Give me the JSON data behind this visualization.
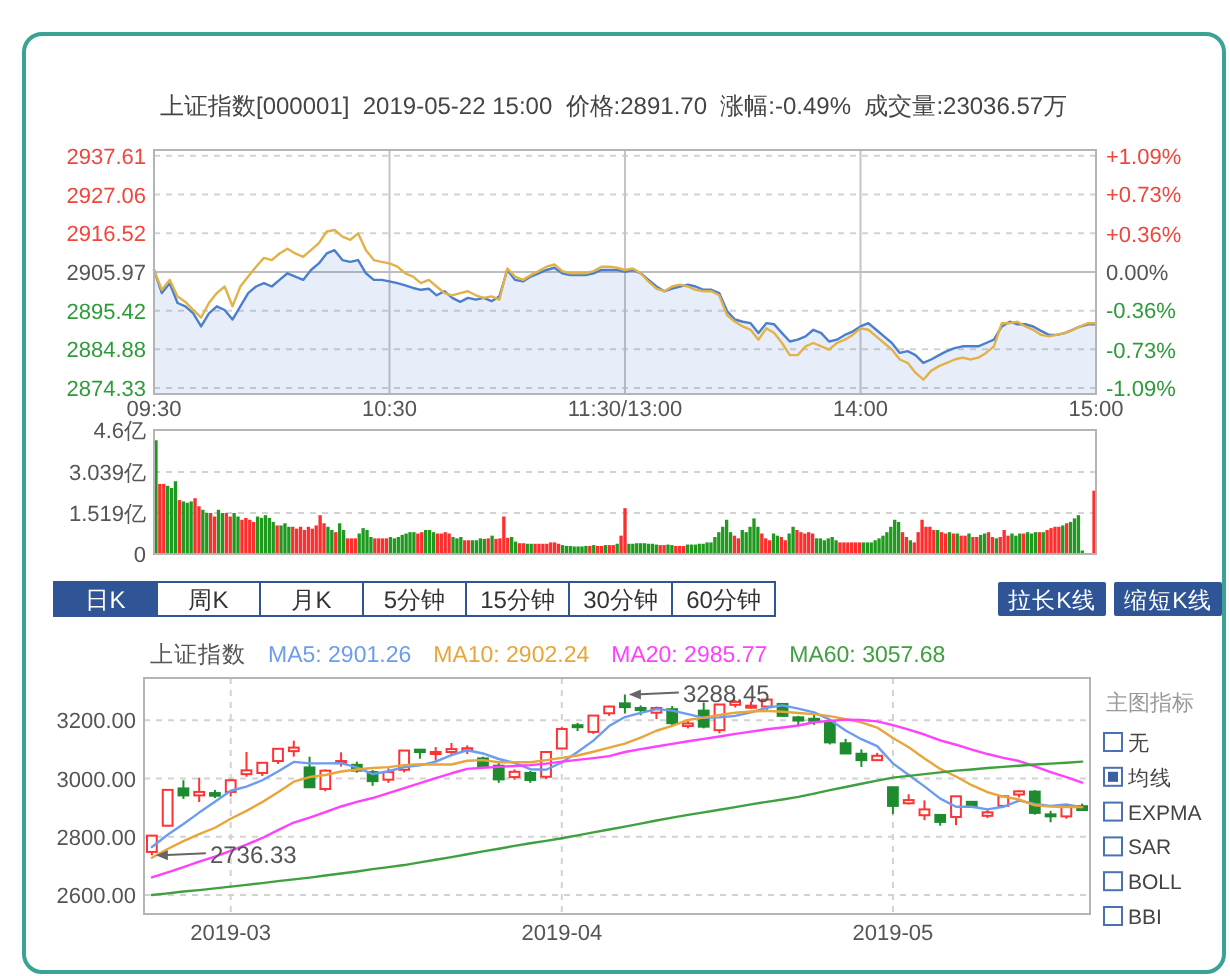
{
  "chart_data": [
    {
      "type": "line",
      "title": "上证指数[000001]  2019-05-22 15:00  价格:2891.70  涨幅:-0.49%  成交量:23036.57万",
      "categories": [
        "09:30",
        null,
        null,
        null,
        null,
        null,
        null,
        null,
        null,
        null,
        null,
        null,
        null,
        null,
        null,
        null,
        null,
        null,
        null,
        null,
        null,
        null,
        null,
        null,
        null,
        null,
        null,
        null,
        null,
        null,
        "10:30",
        null,
        null,
        null,
        null,
        null,
        null,
        null,
        null,
        null,
        null,
        null,
        null,
        null,
        null,
        null,
        null,
        null,
        null,
        null,
        null,
        null,
        null,
        null,
        null,
        null,
        null,
        null,
        null,
        null,
        "11:30/13:00",
        null,
        null,
        null,
        null,
        null,
        null,
        null,
        null,
        null,
        null,
        null,
        null,
        null,
        null,
        null,
        null,
        null,
        null,
        null,
        null,
        null,
        null,
        null,
        null,
        null,
        null,
        null,
        null,
        null,
        "14:00",
        null,
        null,
        null,
        null,
        null,
        null,
        null,
        null,
        null,
        null,
        null,
        null,
        null,
        null,
        null,
        null,
        null,
        null,
        null,
        null,
        null,
        null,
        null,
        null,
        null,
        null,
        null,
        null,
        null,
        "15:00"
      ],
      "ylim": [
        2872.7,
        2939.2
      ],
      "yticks": [
        2874.33,
        2884.88,
        2895.42,
        2905.97,
        2916.52,
        2927.06,
        2937.61
      ],
      "y2lim": [
        -1.145,
        1.143
      ],
      "y2ticks": [
        {
          "value": -1.09,
          "label": "-1.09%"
        },
        {
          "value": -0.73,
          "label": "-0.73%"
        },
        {
          "value": -0.36,
          "label": "-0.36%"
        },
        {
          "value": 0,
          "label": "0.00%"
        },
        {
          "value": 0.36,
          "label": "+0.36%"
        },
        {
          "value": 0.73,
          "label": "+0.73%"
        },
        {
          "value": 1.09,
          "label": "+1.09%"
        }
      ],
      "grid": true,
      "ref_lines": [
        {
          "axis": "y",
          "value": 2905.97
        }
      ],
      "series": [
        {
          "type": "area",
          "color": "#4b7fce",
          "values": [
            2906.5,
            2900.2,
            2902.9,
            2897.5,
            2896.6,
            2894.7,
            2891.1,
            2894.7,
            2896.6,
            2895.6,
            2893,
            2896.6,
            2900.2,
            2902,
            2902.9,
            2902,
            2903.8,
            2905.6,
            2904.7,
            2903.8,
            2906.5,
            2908.3,
            2911,
            2911.9,
            2909.2,
            2908.7,
            2909.2,
            2905.6,
            2903.8,
            2903.8,
            2903.4,
            2902.9,
            2902.3,
            2901.6,
            2901.1,
            2901.4,
            2899.6,
            2900.7,
            2898.9,
            2897.8,
            2898.9,
            2898.4,
            2898.9,
            2898,
            2899.3,
            2906.5,
            2903.8,
            2903.4,
            2904.7,
            2905.6,
            2906.5,
            2907.1,
            2905.6,
            2905.1,
            2905.1,
            2905.1,
            2905.6,
            2906.5,
            2906.5,
            2906.5,
            2906,
            2906.5,
            2905.6,
            2903.8,
            2902,
            2900.7,
            2901.4,
            2902,
            2902.5,
            2902,
            2901.1,
            2901.1,
            2900.2,
            2895.3,
            2893,
            2892.4,
            2892,
            2889.3,
            2892,
            2891.7,
            2889.3,
            2887,
            2887.5,
            2888.4,
            2890.2,
            2889.3,
            2887,
            2887.5,
            2888.8,
            2889.7,
            2891.1,
            2892,
            2890.2,
            2888.4,
            2886.6,
            2883.9,
            2884.4,
            2883.3,
            2881.2,
            2882.1,
            2883.3,
            2884.4,
            2885.2,
            2885.7,
            2885.7,
            2885.7,
            2886.6,
            2887.5,
            2891.1,
            2892.4,
            2891.7,
            2891.7,
            2891.1,
            2889.9,
            2888.8,
            2888.8,
            2889.3,
            2890.2,
            2891.1,
            2891.7,
            2891.7
          ]
        },
        {
          "type": "line",
          "color": "#e2b24a",
          "values": [
            2906.5,
            2901.1,
            2903.8,
            2899.3,
            2897.8,
            2895.6,
            2893.5,
            2897.5,
            2900.2,
            2902,
            2896.6,
            2902,
            2904.7,
            2907.4,
            2909.8,
            2909.2,
            2911,
            2912.3,
            2911,
            2910.1,
            2911.9,
            2913.8,
            2917,
            2917.4,
            2915.6,
            2914.7,
            2916.5,
            2911.9,
            2909.2,
            2908.7,
            2908.3,
            2907.4,
            2905.6,
            2904.7,
            2902.9,
            2903.8,
            2902,
            2900.2,
            2899.6,
            2900.2,
            2900.7,
            2899.6,
            2898.9,
            2899.3,
            2898.4,
            2906.9,
            2904.7,
            2903.8,
            2905.1,
            2906.2,
            2907.4,
            2908,
            2906.2,
            2905.6,
            2905.6,
            2905.6,
            2906.2,
            2907.4,
            2907.4,
            2907.1,
            2906.5,
            2906.9,
            2905.6,
            2903.3,
            2901.4,
            2900.7,
            2902,
            2902.5,
            2902,
            2901.1,
            2900.7,
            2900.7,
            2899.6,
            2894.2,
            2892.4,
            2891.1,
            2890.2,
            2887.5,
            2890.6,
            2889.3,
            2886.6,
            2883.3,
            2883.3,
            2885.7,
            2886.6,
            2885.7,
            2884.8,
            2886.6,
            2887.5,
            2888.8,
            2890.6,
            2890.2,
            2888.4,
            2886.6,
            2884.8,
            2882.1,
            2881.2,
            2878.5,
            2876.6,
            2879,
            2880.3,
            2881.2,
            2882.1,
            2882.6,
            2882.1,
            2882.6,
            2883.9,
            2885.7,
            2892,
            2892,
            2892.4,
            2891.1,
            2890.2,
            2888.8,
            2888.4,
            2888.8,
            2889.3,
            2890.2,
            2891.1,
            2892,
            2892
          ]
        }
      ]
    },
    {
      "type": "bar",
      "tick_labels": "y",
      "categories": [
        null,
        null,
        null,
        null,
        null,
        null,
        null,
        null,
        null,
        null,
        null,
        null,
        null,
        null,
        null,
        null,
        null,
        null,
        null,
        null,
        null,
        null,
        null,
        null,
        null,
        null,
        null,
        null,
        null,
        null,
        null,
        null,
        null,
        null,
        null,
        null,
        null,
        null,
        null,
        null,
        null,
        null,
        null,
        null,
        null,
        null,
        null,
        null,
        null,
        null,
        null,
        null,
        null,
        null,
        null,
        null,
        null,
        null,
        null,
        null,
        null,
        null,
        null,
        null,
        null,
        null,
        null,
        null,
        null,
        null,
        null,
        null,
        null,
        null,
        null,
        null,
        null,
        null,
        null,
        null,
        null,
        null,
        null,
        null,
        null,
        null,
        null,
        null,
        null,
        null,
        null,
        null,
        null,
        null,
        null,
        null,
        null,
        null,
        null,
        null,
        null,
        null,
        null,
        null,
        null,
        null,
        null,
        null,
        null,
        null,
        null,
        null,
        null,
        null,
        null,
        null,
        null,
        null,
        null,
        null,
        null,
        null,
        null,
        null,
        null,
        null,
        null,
        null,
        null,
        null,
        null,
        null,
        null,
        null,
        null,
        null,
        null,
        null,
        null,
        null,
        null,
        null,
        null,
        null,
        null,
        null,
        null,
        null,
        null,
        null,
        null,
        null,
        null,
        null,
        null,
        null,
        null,
        null,
        null,
        null,
        null,
        null,
        null,
        null,
        null,
        null,
        null,
        null,
        null,
        null,
        null,
        null,
        null,
        null,
        null,
        null,
        null,
        null,
        null,
        null,
        null,
        null,
        null,
        null,
        null,
        null,
        null,
        null,
        null,
        null,
        null,
        null,
        null,
        null,
        null,
        null,
        null,
        null,
        null,
        null,
        null,
        null,
        null,
        null,
        null,
        null,
        null,
        null,
        null,
        null,
        null,
        null,
        null,
        null,
        null,
        null,
        null,
        null,
        null,
        null,
        null,
        null,
        null,
        null,
        null,
        null,
        null,
        null,
        null,
        null,
        null,
        null,
        null,
        null,
        null,
        null,
        null,
        null,
        null,
        null,
        null
      ],
      "ylim": [
        0,
        4.6
      ],
      "yticks": [
        0,
        {
          "value": 1.519,
          "label": "1.519亿"
        },
        {
          "value": 3.039,
          "label": "3.039亿"
        },
        {
          "value": 4.6,
          "label": "4.6亿"
        }
      ],
      "grid": "y",
      "values": [
        4.22,
        2.6,
        2.6,
        2.53,
        2.45,
        2.7,
        2.0,
        1.95,
        1.9,
        1.95,
        2.07,
        1.77,
        1.64,
        1.52,
        1.52,
        1.39,
        1.64,
        1.52,
        1.52,
        1.39,
        1.52,
        1.39,
        1.27,
        1.34,
        1.27,
        1.19,
        1.39,
        1.34,
        1.44,
        1.34,
        1.19,
        1.06,
        1.06,
        1.14,
        1.01,
        1.01,
        0.94,
        1.01,
        0.89,
        1.01,
        0.94,
        1.06,
        1.44,
        1.14,
        1.01,
        0.89,
        0.81,
        1.14,
        0.89,
        0.58,
        0.58,
        0.58,
        0.76,
        0.96,
        0.89,
        0.63,
        0.58,
        0.58,
        0.58,
        0.58,
        0.63,
        0.58,
        0.63,
        0.71,
        0.76,
        0.81,
        0.81,
        0.76,
        0.81,
        0.89,
        0.89,
        0.81,
        0.76,
        0.76,
        0.81,
        0.76,
        0.63,
        0.58,
        0.63,
        0.51,
        0.51,
        0.51,
        0.51,
        0.58,
        0.56,
        0.58,
        0.68,
        0.56,
        0.58,
        1.39,
        0.6,
        0.63,
        0.46,
        0.4,
        0.4,
        0.38,
        0.38,
        0.38,
        0.38,
        0.38,
        0.38,
        0.43,
        0.43,
        0.38,
        0.33,
        0.3,
        0.3,
        0.28,
        0.28,
        0.28,
        0.3,
        0.3,
        0.33,
        0.3,
        0.3,
        0.33,
        0.33,
        0.33,
        0.38,
        0.68,
        1.7,
        0.38,
        0.38,
        0.4,
        0.4,
        0.4,
        0.38,
        0.38,
        0.35,
        0.33,
        0.33,
        0.35,
        0.33,
        0.3,
        0.3,
        0.3,
        0.35,
        0.35,
        0.35,
        0.38,
        0.38,
        0.43,
        0.43,
        0.63,
        0.81,
        1.01,
        1.27,
        0.81,
        0.68,
        0.58,
        0.89,
        0.81,
        1.01,
        1.32,
        1.01,
        0.76,
        0.58,
        0.51,
        0.76,
        0.68,
        0.63,
        0.51,
        0.76,
        1.01,
        0.89,
        0.81,
        0.76,
        0.81,
        0.76,
        0.58,
        0.58,
        0.51,
        0.58,
        0.63,
        0.51,
        0.43,
        0.43,
        0.43,
        0.43,
        0.43,
        0.43,
        0.43,
        0.43,
        0.43,
        0.51,
        0.58,
        0.68,
        0.81,
        1.01,
        1.27,
        1.19,
        0.81,
        0.63,
        0.51,
        0.43,
        0.81,
        1.27,
        1.01,
        1.01,
        0.89,
        0.89,
        0.81,
        0.76,
        0.81,
        0.76,
        0.76,
        0.68,
        0.68,
        0.76,
        0.63,
        0.63,
        0.71,
        0.76,
        0.81,
        0.63,
        0.58,
        0.63,
        0.89,
        0.68,
        0.76,
        0.68,
        0.76,
        0.76,
        0.81,
        0.76,
        0.81,
        0.81,
        0.81,
        0.89,
        0.96,
        1.01,
        1.01,
        1.06,
        1.14,
        1.19,
        1.32,
        1.44,
        0.13,
        null,
        null,
        2.35
      ],
      "colors": [
        "#1f9a1f",
        "#ff2d2d",
        "#ff2d2d",
        "#1f9a1f",
        "#1f9a1f",
        "#1f9a1f",
        "#ff2d2d",
        "#1f9a1f",
        "#1f9a1f",
        "#1f9a1f",
        "#ff2d2d",
        "#ff2d2d",
        "#1f9a1f",
        "#1f9a1f",
        "#ff2d2d",
        "#ff2d2d",
        "#1f9a1f",
        "#1f9a1f",
        "#ff2d2d",
        "#ff2d2d",
        "#1f9a1f",
        "#1f9a1f",
        "#ff2d2d",
        "#ff2d2d",
        "#ff2d2d",
        "#ff2d2d",
        "#1f9a1f",
        "#1f9a1f",
        "#1f9a1f",
        "#1f9a1f",
        "#1f9a1f",
        "#ff2d2d",
        "#1f9a1f",
        "#1f9a1f",
        "#1f9a1f",
        "#ff2d2d",
        "#ff2d2d",
        "#ff2d2d",
        "#ff2d2d",
        "#ff2d2d",
        "#ff2d2d",
        "#ff2d2d",
        "#ff2d2d",
        "#ff2d2d",
        "#1f9a1f",
        "#1f9a1f",
        "#ff2d2d",
        "#1f9a1f",
        "#1f9a1f",
        "#ff2d2d",
        "#ff2d2d",
        "#ff2d2d",
        "#1f9a1f",
        "#1f9a1f",
        "#1f9a1f",
        "#1f9a1f",
        "#ff2d2d",
        "#ff2d2d",
        "#ff2d2d",
        "#ff2d2d",
        "#1f9a1f",
        "#1f9a1f",
        "#1f9a1f",
        "#1f9a1f",
        "#1f9a1f",
        "#1f9a1f",
        "#1f9a1f",
        "#ff2d2d",
        "#ff2d2d",
        "#1f9a1f",
        "#1f9a1f",
        "#1f9a1f",
        "#ff2d2d",
        "#ff2d2d",
        "#ff2d2d",
        "#ff2d2d",
        "#1f9a1f",
        "#1f9a1f",
        "#1f9a1f",
        "#ff2d2d",
        "#ff2d2d",
        "#1f9a1f",
        "#1f9a1f",
        "#1f9a1f",
        "#1f9a1f",
        "#ff2d2d",
        "#1f9a1f",
        "#ff2d2d",
        "#ff2d2d",
        "#ff2d2d",
        "#ff2d2d",
        "#1f9a1f",
        "#1f9a1f",
        "#ff2d2d",
        "#ff2d2d",
        "#1f9a1f",
        "#1f9a1f",
        "#ff2d2d",
        "#ff2d2d",
        "#ff2d2d",
        "#ff2d2d",
        "#ff2d2d",
        "#ff2d2d",
        "#ff2d2d",
        "#1f9a1f",
        "#1f9a1f",
        "#1f9a1f",
        "#1f9a1f",
        "#1f9a1f",
        "#1f9a1f",
        "#1f9a1f",
        "#ff2d2d",
        "#1f9a1f",
        "#ff2d2d",
        "#ff2d2d",
        "#1f9a1f",
        "#ff2d2d",
        "#ff2d2d",
        "#1f9a1f",
        "#ff2d2d",
        "#ff2d2d",
        "#1f9a1f",
        "#1f9a1f",
        "#1f9a1f",
        "#1f9a1f",
        "#1f9a1f",
        "#1f9a1f",
        "#1f9a1f",
        "#1f9a1f",
        "#ff2d2d",
        "#ff2d2d",
        "#1f9a1f",
        "#1f9a1f",
        "#ff2d2d",
        "#ff2d2d",
        "#ff2d2d",
        "#1f9a1f",
        "#1f9a1f",
        "#1f9a1f",
        "#1f9a1f",
        "#1f9a1f",
        "#1f9a1f",
        "#1f9a1f",
        "#1f9a1f",
        "#1f9a1f",
        "#1f9a1f",
        "#1f9a1f",
        "#1f9a1f",
        "#ff2d2d",
        "#ff2d2d",
        "#1f9a1f",
        "#1f9a1f",
        "#1f9a1f",
        "#1f9a1f",
        "#1f9a1f",
        "#ff2d2d",
        "#ff2d2d",
        "#ff2d2d",
        "#1f9a1f",
        "#1f9a1f",
        "#ff2d2d",
        "#ff2d2d",
        "#1f9a1f",
        "#1f9a1f",
        "#ff2d2d",
        "#ff2d2d",
        "#ff2d2d",
        "#ff2d2d",
        "#ff2d2d",
        "#1f9a1f",
        "#1f9a1f",
        "#1f9a1f",
        "#1f9a1f",
        "#1f9a1f",
        "#1f9a1f",
        "#ff2d2d",
        "#ff2d2d",
        "#ff2d2d",
        "#ff2d2d",
        "#ff2d2d",
        "#ff2d2d",
        "#1f9a1f",
        "#1f9a1f",
        "#1f9a1f",
        "#1f9a1f",
        "#1f9a1f",
        "#1f9a1f",
        "#1f9a1f",
        "#1f9a1f",
        "#1f9a1f",
        "#1f9a1f",
        "#ff2d2d",
        "#ff2d2d",
        "#1f9a1f",
        "#ff2d2d",
        "#ff2d2d",
        "#ff2d2d",
        "#ff2d2d",
        "#ff2d2d",
        "#ff2d2d",
        "#1f9a1f",
        "#ff2d2d",
        "#ff2d2d",
        "#1f9a1f",
        "#ff2d2d",
        "#1f9a1f",
        "#ff2d2d",
        "#ff2d2d",
        "#1f9a1f",
        "#ff2d2d",
        "#ff2d2d",
        "#1f9a1f",
        "#1f9a1f",
        "#ff2d2d",
        "#ff2d2d",
        "#1f9a1f",
        "#ff2d2d",
        "#ff2d2d",
        "#ff2d2d",
        "#1f9a1f",
        "#1f9a1f",
        "#1f9a1f",
        "#ff2d2d",
        "#1f9a1f",
        "#1f9a1f",
        "#1f9a1f",
        "#ff2d2d",
        "#1f9a1f",
        "#ff2d2d",
        "#ff2d2d",
        "#ff2d2d",
        "#ff2d2d",
        "#1f9a1f",
        "#ff2d2d",
        "#1f9a1f",
        "#1f9a1f",
        "#1f9a1f",
        "#1f9a1f",
        null,
        null,
        "#ff2d2d"
      ]
    },
    {
      "type": "other",
      "categories": [
        "日K",
        "周K",
        "月K",
        "5分钟",
        "15分钟",
        "30分钟",
        "60分钟"
      ],
      "annotations": [
        "拉长K线",
        "缩短K线"
      ]
    },
    {
      "type": "candlestick",
      "legend": "top",
      "legend_title": "上证指数",
      "grid": true,
      "categories": [
        null,
        null,
        null,
        null,
        null,
        "2019-03",
        null,
        null,
        null,
        null,
        null,
        null,
        null,
        null,
        null,
        null,
        null,
        null,
        null,
        null,
        null,
        null,
        null,
        null,
        null,
        null,
        "2019-04",
        null,
        null,
        null,
        null,
        null,
        null,
        null,
        null,
        null,
        null,
        null,
        null,
        null,
        null,
        null,
        null,
        null,
        null,
        null,
        null,
        "2019-05",
        null,
        null,
        null,
        null,
        null,
        null,
        null,
        null,
        null,
        null,
        null,
        null
      ],
      "ylim": [
        2535,
        3345
      ],
      "yticks": [
        {
          "value": 2600,
          "label": "2600.00"
        },
        {
          "value": 2800,
          "label": "2800.00"
        },
        {
          "value": 3000,
          "label": "3000.00"
        },
        {
          "value": 3200,
          "label": "3200.00"
        }
      ],
      "annotations": [
        {
          "text": "3288.45",
          "y": 3288.45
        },
        "2736.33"
      ],
      "series": [
        {
          "type": "candlestick",
          "ohlc": [
            [
              2748,
              2804,
              2736.33,
              2804
            ],
            [
              2838,
              2962,
              2838,
              2961
            ],
            [
              2966,
              2994,
              2930,
              2942
            ],
            [
              2942,
              3003,
              2919,
              2954
            ],
            [
              2950,
              2961,
              2933,
              2941
            ],
            [
              2954,
              2997,
              2938,
              2994
            ],
            [
              3015,
              3091,
              3006,
              3028
            ],
            [
              3019,
              3055,
              3009,
              3054
            ],
            [
              3060,
              3103,
              3050,
              3102
            ],
            [
              3094,
              3130,
              3075,
              3106
            ],
            [
              3038,
              3075,
              2969,
              2970
            ],
            [
              2964,
              3031,
              2956,
              3027
            ],
            [
              3053,
              3090,
              3041,
              3060
            ],
            [
              3047,
              3058,
              3020,
              3027
            ],
            [
              3022,
              3029,
              2975,
              2991
            ],
            [
              2996,
              3035,
              2985,
              3022
            ],
            [
              3030,
              3098,
              3021,
              3096
            ],
            [
              3099,
              3101,
              3068,
              3091
            ],
            [
              3086,
              3108,
              3061,
              3091
            ],
            [
              3091,
              3122,
              3083,
              3101
            ],
            [
              3096,
              3114,
              3084,
              3104
            ],
            [
              3069,
              3075,
              3034,
              3043
            ],
            [
              3044,
              3060,
              2985,
              2997
            ],
            [
              3005,
              3031,
              2996,
              3023
            ],
            [
              3019,
              3026,
              2985,
              2995
            ],
            [
              3006,
              3093,
              2998,
              3091
            ],
            [
              3103,
              3176,
              3103,
              3170
            ],
            [
              3183,
              3191,
              3163,
              3177
            ],
            [
              3160,
              3217,
              3153,
              3216
            ],
            [
              3224,
              3250,
              3215,
              3247
            ],
            [
              3258,
              3288.45,
              3223,
              3245
            ],
            [
              3242,
              3251,
              3217,
              3240
            ],
            [
              3226,
              3247,
              3204,
              3242
            ],
            [
              3238,
              3249,
              3183,
              3190
            ],
            [
              3180,
              3197,
              3172,
              3189
            ],
            [
              3233,
              3261,
              3172,
              3178
            ],
            [
              3166,
              3254,
              3155,
              3254
            ],
            [
              3253,
              3269,
              3244,
              3263
            ],
            [
              3244,
              3264,
              3240,
              3250
            ],
            [
              3247,
              3271,
              3231,
              3271
            ],
            [
              3256,
              3259,
              3214,
              3215
            ],
            [
              3210,
              3215,
              3182,
              3199
            ],
            [
              3205,
              3218,
              3184,
              3202
            ],
            [
              3196,
              3200,
              3117,
              3124
            ],
            [
              3121,
              3136,
              3085,
              3086
            ],
            [
              3085,
              3100,
              3040,
              3063
            ],
            [
              3063,
              3088,
              3062,
              3078
            ],
            [
              2970,
              2970,
              2878,
              2906
            ],
            [
              2915,
              2946,
              2911,
              2926
            ],
            [
              2874,
              2925,
              2857,
              2894
            ],
            [
              2875,
              2876,
              2838,
              2851
            ],
            [
              2868,
              2940,
              2840,
              2939
            ],
            [
              2920,
              2922,
              2899,
              2904
            ],
            [
              2872,
              2895,
              2864,
              2884
            ],
            [
              2906,
              2940,
              2906,
              2939
            ],
            [
              2945,
              2960,
              2935,
              2956
            ],
            [
              2955,
              2960,
              2876,
              2882
            ],
            [
              2877,
              2889,
              2850,
              2871
            ],
            [
              2870,
              2907,
              2862,
              2906
            ],
            [
              2905,
              2914,
              2889,
              2892
            ]
          ],
          "colors": [
            "#ff3333",
            "#ff3333",
            "#1e8c2e",
            "#ff3333",
            "#1e8c2e",
            "#ff3333",
            "#ff3333",
            "#ff3333",
            "#ff3333",
            "#ff3333",
            "#1e8c2e",
            "#ff3333",
            "#ff3333",
            "#1e8c2e",
            "#1e8c2e",
            "#ff3333",
            "#ff3333",
            "#1e8c2e",
            "#ff3333",
            "#ff3333",
            "#ff3333",
            "#1e8c2e",
            "#1e8c2e",
            "#ff3333",
            "#1e8c2e",
            "#ff3333",
            "#ff3333",
            "#1e8c2e",
            "#ff3333",
            "#ff3333",
            "#1e8c2e",
            "#1e8c2e",
            "#ff3333",
            "#1e8c2e",
            "#ff3333",
            "#1e8c2e",
            "#ff3333",
            "#ff3333",
            "#ff3333",
            "#ff3333",
            "#1e8c2e",
            "#1e8c2e",
            "#1e8c2e",
            "#1e8c2e",
            "#1e8c2e",
            "#1e8c2e",
            "#ff3333",
            "#1e8c2e",
            "#ff3333",
            "#ff3333",
            "#1e8c2e",
            "#ff3333",
            "#1e8c2e",
            "#ff3333",
            "#ff3333",
            "#ff3333",
            "#1e8c2e",
            "#1e8c2e",
            "#ff3333",
            "#1e8c2e"
          ]
        },
        {
          "type": "line",
          "name": "MA5: 2901.26",
          "color": "#6c9cf0",
          "values": [
            2765,
            2807,
            2844,
            2883,
            2920,
            2958,
            2972,
            2994,
            3024,
            3057,
            3052,
            3052,
            3053,
            3038,
            3015,
            3025,
            3039,
            3045,
            3058,
            3080,
            3097,
            3086,
            3067,
            3054,
            3032,
            3030,
            3055,
            3091,
            3130,
            3180,
            3211,
            3225,
            3238,
            3233,
            3221,
            3208,
            3210,
            3215,
            3227,
            3243,
            3251,
            3240,
            3227,
            3202,
            3165,
            3135,
            3111,
            3052,
            3012,
            2973,
            2931,
            2903,
            2903,
            2894,
            2903,
            2924,
            2913,
            2906,
            2911,
            2901
          ]
        },
        {
          "type": "line",
          "name": "MA10: 2902.24",
          "color": "#e8a53a",
          "values": [
            2728,
            2758,
            2785,
            2809,
            2831,
            2862,
            2889,
            2919,
            2953,
            2989,
            3005,
            3012,
            3024,
            3031,
            3036,
            3039,
            3046,
            3049,
            3048,
            3048,
            3061,
            3063,
            3056,
            3056,
            3056,
            3063,
            3071,
            3079,
            3092,
            3106,
            3120,
            3140,
            3164,
            3181,
            3201,
            3209,
            3218,
            3226,
            3230,
            3232,
            3229,
            3225,
            3221,
            3214,
            3204,
            3193,
            3175,
            3139,
            3107,
            3069,
            3033,
            3007,
            2977,
            2953,
            2938,
            2928,
            2908,
            2904,
            2902,
            2902
          ]
        },
        {
          "type": "line",
          "name": "MA20: 2985.77",
          "color": "#ff40ff",
          "values": [
            2661,
            2678,
            2696,
            2715,
            2732,
            2752,
            2773,
            2796,
            2823,
            2849,
            2866,
            2885,
            2904,
            2920,
            2933,
            2950,
            2967,
            2984,
            3001,
            3018,
            3033,
            3037,
            3040,
            3043,
            3046,
            3051,
            3058,
            3064,
            3070,
            3077,
            3091,
            3101,
            3110,
            3119,
            3128,
            3136,
            3144,
            3153,
            3161,
            3169,
            3175,
            3182,
            3193,
            3198,
            3202,
            3201,
            3196,
            3183,
            3168,
            3151,
            3131,
            3116,
            3099,
            3084,
            3071,
            3060,
            3042,
            3022,
            3005,
            2986
          ]
        },
        {
          "type": "line",
          "name": "MA60: 3057.68",
          "color": "#3fa03f",
          "values": [
            2600,
            2606,
            2612,
            2617,
            2623,
            2629,
            2635,
            2641,
            2648,
            2654,
            2660,
            2667,
            2674,
            2681,
            2689,
            2696,
            2703,
            2712,
            2721,
            2730,
            2740,
            2750,
            2759,
            2769,
            2778,
            2786,
            2795,
            2805,
            2815,
            2825,
            2835,
            2845,
            2856,
            2866,
            2875,
            2884,
            2893,
            2902,
            2911,
            2920,
            2928,
            2937,
            2948,
            2960,
            2971,
            2982,
            2993,
            3003,
            3009,
            3015,
            3021,
            3027,
            3031,
            3036,
            3040,
            3044,
            3048,
            3051,
            3054,
            3058
          ]
        }
      ]
    },
    {
      "type": "other",
      "title": "主图指标",
      "categories": [
        "无",
        "均线",
        "EXPMA",
        "SAR",
        "BOLL",
        "BBI"
      ]
    }
  ]
}
